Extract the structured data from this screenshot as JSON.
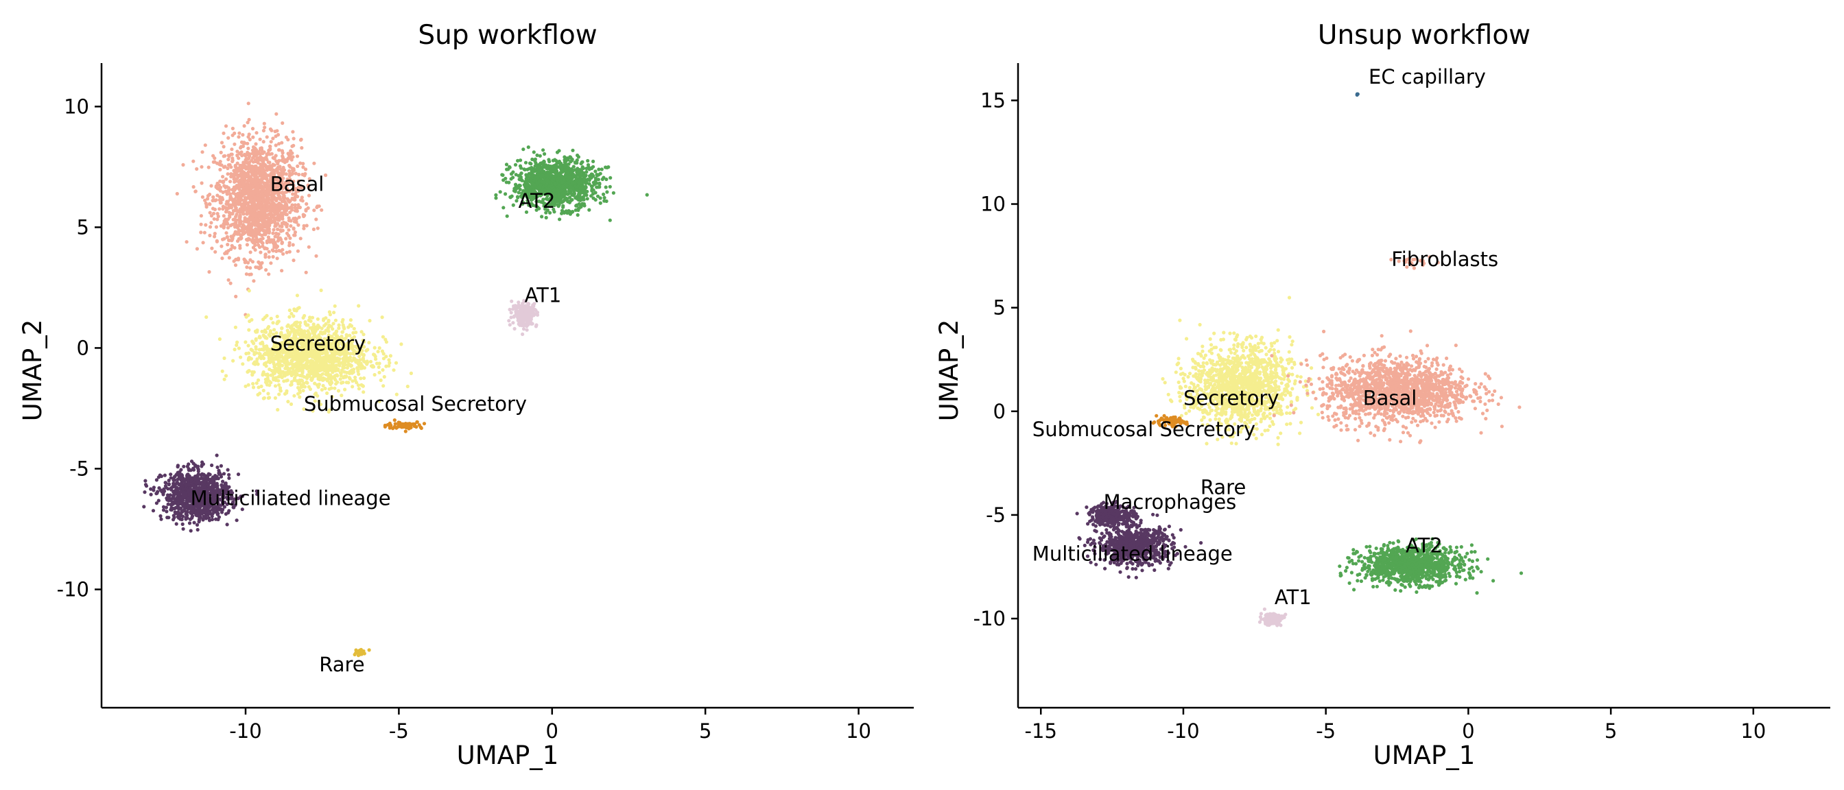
{
  "colors": {
    "Basal": "#f2ab98",
    "Secretory": "#f5ee8f",
    "AT2": "#53a653",
    "AT1": "#e2cad8",
    "Submucosal Secretory": "#de8c22",
    "Multiciliated lineage": "#583862",
    "Rare": "#e3bc3a",
    "Macrophages": "#583862",
    "Fibroblasts": "#f2ab98",
    "EC capillary": "#3a6b8f"
  },
  "chart_data": [
    {
      "type": "scatter",
      "title": "Sup workflow",
      "xlabel": "UMAP_1",
      "ylabel": "UMAP_2",
      "xlim": [
        -14.7,
        11.8
      ],
      "ylim": [
        -14.9,
        11.8
      ],
      "xticks": [
        -10,
        -5,
        0,
        5,
        10
      ],
      "yticks": [
        -10,
        -5,
        0,
        5,
        10
      ],
      "xtick_labels": [
        "-10",
        "-5",
        "0",
        "5",
        "10"
      ],
      "ytick_labels": [
        "-10",
        "-5",
        "0",
        "5",
        "10"
      ],
      "grid": false,
      "legend": "none",
      "clusters": [
        {
          "name": "Basal",
          "center": [
            -9.6,
            6.2
          ],
          "spread": [
            1.4,
            2.4
          ],
          "count": 1700
        },
        {
          "name": "Secretory",
          "center": [
            -7.9,
            -0.3
          ],
          "spread": [
            2.0,
            1.5
          ],
          "count": 1400
        },
        {
          "name": "AT2",
          "center": [
            0.1,
            6.8
          ],
          "spread": [
            1.4,
            1.0
          ],
          "count": 1100
        },
        {
          "name": "AT1",
          "center": [
            -0.9,
            1.4
          ],
          "spread": [
            0.4,
            0.5
          ],
          "count": 200
        },
        {
          "name": "Submucosal Secretory",
          "center": [
            -4.8,
            -3.2
          ],
          "spread": [
            0.6,
            0.15
          ],
          "count": 70
        },
        {
          "name": "Multiciliated lineage",
          "center": [
            -11.6,
            -6.1
          ],
          "spread": [
            1.1,
            1.0
          ],
          "count": 1000
        },
        {
          "name": "Rare",
          "center": [
            -6.3,
            -12.6
          ],
          "spread": [
            0.2,
            0.15
          ],
          "count": 25
        }
      ],
      "labels": [
        {
          "text": "Basal",
          "at": [
            -9.2,
            6.5
          ]
        },
        {
          "text": "AT2",
          "at": [
            -1.1,
            5.8
          ]
        },
        {
          "text": "AT1",
          "at": [
            -0.9,
            1.9
          ]
        },
        {
          "text": "Secretory",
          "at": [
            -9.2,
            -0.1
          ]
        },
        {
          "text": "Submucosal Secretory",
          "at": [
            -8.1,
            -2.6
          ]
        },
        {
          "text": "Multiciliated lineage",
          "at": [
            -11.8,
            -6.5
          ]
        },
        {
          "text": "Rare",
          "at": [
            -7.6,
            -13.4
          ]
        }
      ]
    },
    {
      "type": "scatter",
      "title": "Unsup workflow",
      "xlabel": "UMAP_1",
      "ylabel": "UMAP_2",
      "xlim": [
        -15.8,
        12.7
      ],
      "ylim": [
        -14.3,
        16.8
      ],
      "xticks": [
        -15,
        -10,
        -5,
        0,
        5,
        10
      ],
      "yticks": [
        -10,
        -5,
        0,
        5,
        10,
        15
      ],
      "xtick_labels": [
        "-15",
        "-10",
        "-5",
        "0",
        "5",
        "10"
      ],
      "ytick_labels": [
        "-10",
        "-5",
        "0",
        "5",
        "10",
        "15"
      ],
      "grid": false,
      "legend": "none",
      "clusters": [
        {
          "name": "Secretory",
          "center": [
            -8.0,
            1.2
          ],
          "spread": [
            1.8,
            2.0
          ],
          "count": 1300
        },
        {
          "name": "Basal",
          "center": [
            -2.5,
            1.0
          ],
          "spread": [
            2.6,
            1.6
          ],
          "count": 1400
        },
        {
          "name": "AT2",
          "center": [
            -2.0,
            -7.4
          ],
          "spread": [
            1.8,
            0.9
          ],
          "count": 1000
        },
        {
          "name": "AT1",
          "center": [
            -6.9,
            -10.0
          ],
          "spread": [
            0.4,
            0.3
          ],
          "count": 120
        },
        {
          "name": "Submucosal Secretory",
          "center": [
            -10.5,
            -0.5
          ],
          "spread": [
            0.6,
            0.2
          ],
          "count": 80
        },
        {
          "name": "Multiciliated lineage",
          "center": [
            -11.7,
            -6.5
          ],
          "spread": [
            1.3,
            0.9
          ],
          "count": 700
        },
        {
          "name": "Macrophages",
          "center": [
            -12.5,
            -5.0
          ],
          "spread": [
            0.8,
            0.5
          ],
          "count": 300
        },
        {
          "name": "Fibroblasts",
          "center": [
            -1.8,
            7.2
          ],
          "spread": [
            0.6,
            0.2
          ],
          "count": 25
        },
        {
          "name": "EC capillary",
          "center": [
            -3.9,
            15.3
          ],
          "spread": [
            0.05,
            0.05
          ],
          "count": 3
        }
      ],
      "labels": [
        {
          "text": "EC capillary",
          "at": [
            -3.5,
            15.8
          ]
        },
        {
          "text": "Fibroblasts",
          "at": [
            -2.7,
            7.0
          ]
        },
        {
          "text": "Secretory",
          "at": [
            -10.0,
            0.3
          ]
        },
        {
          "text": "Basal",
          "at": [
            -3.7,
            0.3
          ]
        },
        {
          "text": "Submucosal Secretory",
          "at": [
            -15.3,
            -1.2
          ]
        },
        {
          "text": "Rare",
          "at": [
            -9.4,
            -4.0
          ]
        },
        {
          "text": "Macrophages",
          "at": [
            -12.8,
            -4.7
          ]
        },
        {
          "text": "Multiciliated lineage",
          "at": [
            -15.3,
            -7.2
          ]
        },
        {
          "text": "AT2",
          "at": [
            -2.2,
            -6.8
          ]
        },
        {
          "text": "AT1",
          "at": [
            -6.8,
            -9.3
          ]
        }
      ]
    }
  ]
}
